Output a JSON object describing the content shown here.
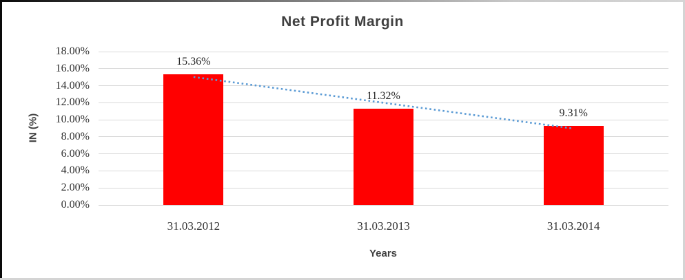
{
  "chart_data": {
    "type": "bar",
    "title": "Net Profit Margin",
    "xlabel": "Years",
    "ylabel": "IN (%)",
    "categories": [
      "31.03.2012",
      "31.03.2013",
      "31.03.2014"
    ],
    "values": [
      15.36,
      11.32,
      9.31
    ],
    "data_labels": [
      "15.36%",
      "11.32%",
      "9.31%"
    ],
    "ylim": [
      0,
      18
    ],
    "y_tick_step": 2,
    "y_tick_labels": [
      "0.00%",
      "2.00%",
      "4.00%",
      "6.00%",
      "8.00%",
      "10.00%",
      "12.00%",
      "14.00%",
      "16.00%",
      "18.00%"
    ],
    "grid": "horizontal-only",
    "legend": "none",
    "bar_color": "#FF0000",
    "gridline_color": "#D9D9D9",
    "text_color": "#404040",
    "trendline": {
      "type": "linear",
      "series": "Net Profit Margin",
      "style": "dotted",
      "color": "#5B9BD5"
    }
  }
}
